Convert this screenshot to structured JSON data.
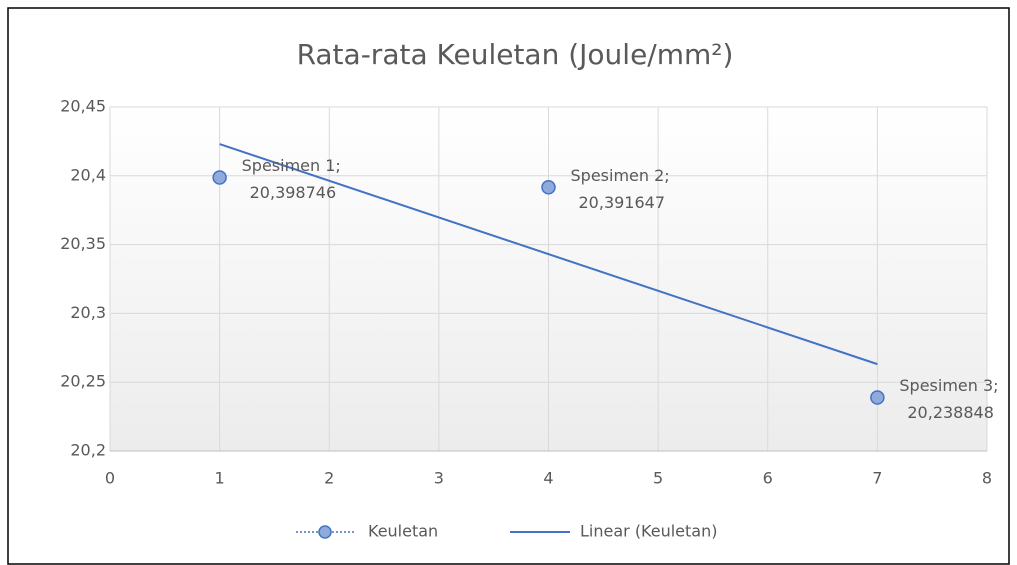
{
  "chart_data": {
    "type": "scatter",
    "title": "Rata-rata Keuletan (Joule/mm²)",
    "x": [
      1,
      4,
      7
    ],
    "series": [
      {
        "name": "Keuletan",
        "color": "#4472c4",
        "marker_fill": "#8faadc",
        "values": [
          20.398746,
          20.391647,
          20.238848
        ],
        "point_labels": [
          "Spesimen 1;",
          "Spesimen 2;",
          "Spesimen 3;"
        ],
        "value_labels": [
          "20,398746",
          "20,391647",
          "20,238848"
        ]
      }
    ],
    "trendline": {
      "name": "Linear (Keuletan)",
      "type": "linear",
      "color": "#4472c4"
    },
    "xlim": [
      0,
      8
    ],
    "xticks": [
      0,
      1,
      2,
      3,
      4,
      5,
      6,
      7,
      8
    ],
    "ylim": [
      20.2,
      20.45
    ],
    "yticks": [
      {
        "value": 20.2,
        "label": "20,2"
      },
      {
        "value": 20.25,
        "label": "20,25"
      },
      {
        "value": 20.3,
        "label": "20,3"
      },
      {
        "value": 20.35,
        "label": "20,35"
      },
      {
        "value": 20.4,
        "label": "20,4"
      },
      {
        "value": 20.45,
        "label": "20,45"
      }
    ],
    "grid": true,
    "legend": "bottom"
  }
}
